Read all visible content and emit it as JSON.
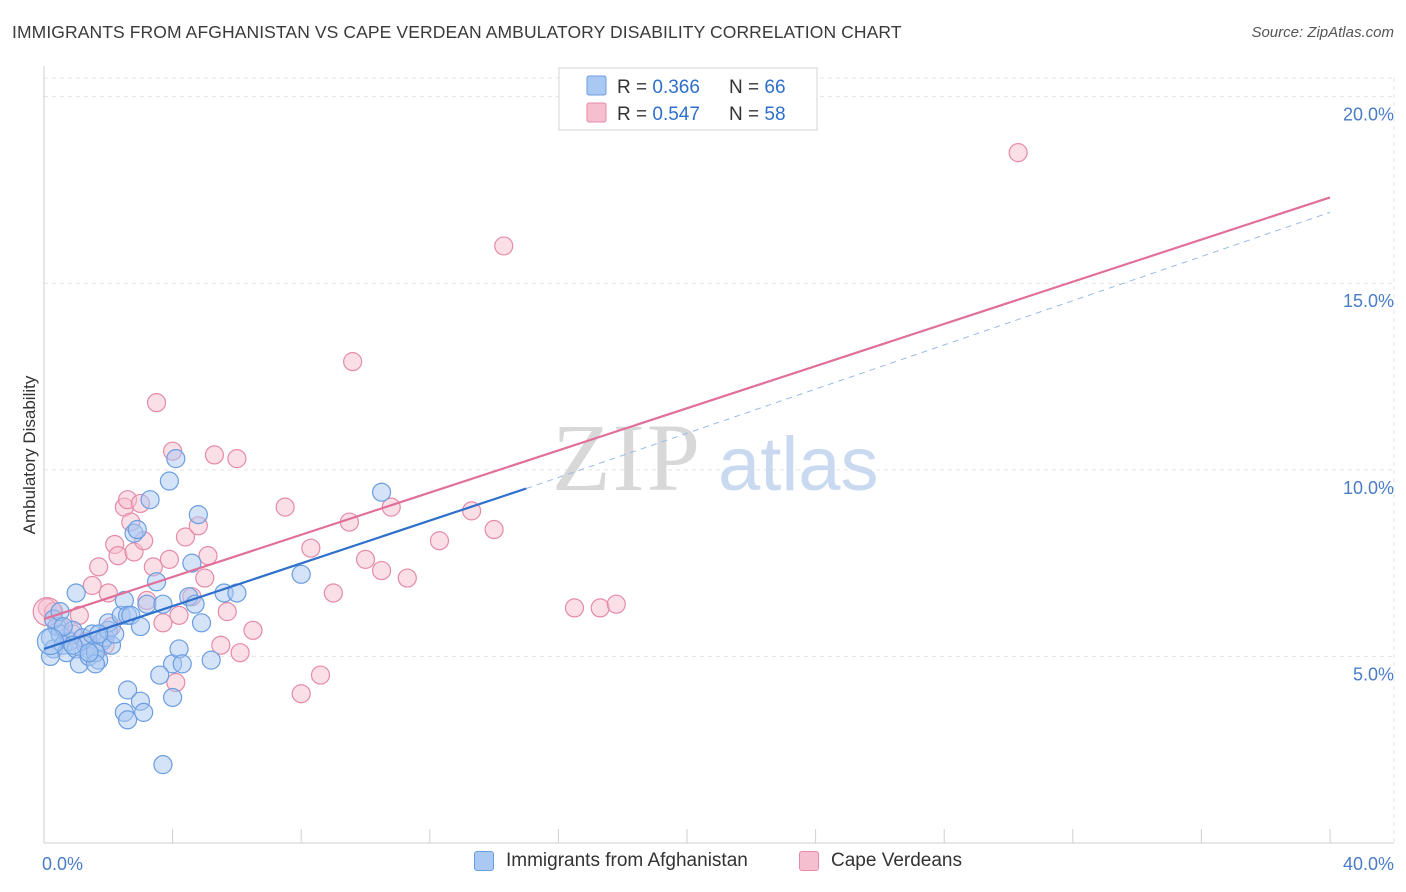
{
  "header": {
    "title": "IMMIGRANTS FROM AFGHANISTAN VS CAPE VERDEAN AMBULATORY DISABILITY CORRELATION CHART",
    "source": "Source: ZipAtlas.com"
  },
  "colors": {
    "blue_fill": "#a9c8f2",
    "blue_stroke": "#6a9ee0",
    "blue_line": "#2e6fcc",
    "pink_fill": "#f6bfd0",
    "pink_stroke": "#e58aa8",
    "pink_line": "#e0709a",
    "tick_label": "#4a7cc7",
    "grid": "#e3e3e3"
  },
  "watermark": {
    "zip": "ZIP",
    "atlas": "atlas"
  },
  "legend_top": [
    {
      "r_label": "R = ",
      "r_value": "0.366",
      "n_label": "N = ",
      "n_value": "66"
    },
    {
      "r_label": "R = ",
      "r_value": "0.547",
      "n_label": "N = ",
      "n_value": "58"
    }
  ],
  "chart_data": {
    "type": "scatter",
    "title": "IMMIGRANTS FROM AFGHANISTAN VS CAPE VERDEAN AMBULATORY DISABILITY CORRELATION CHART",
    "xlabel": "",
    "ylabel": "Ambulatory Disability",
    "xlim": [
      0,
      40
    ],
    "ylim": [
      0,
      20.5
    ],
    "x_tick_labels": [
      "0.0%",
      "40.0%"
    ],
    "y_ticks": [
      5,
      10,
      15,
      20
    ],
    "y_tick_labels": [
      "5.0%",
      "10.0%",
      "15.0%",
      "20.0%"
    ],
    "grid": true,
    "legend_position": "top-center",
    "series": [
      {
        "name": "Immigrants from Afghanistan",
        "color": "blue",
        "r": 0.366,
        "n": 66,
        "trend": {
          "x0": 0,
          "y0": 5.2,
          "x1": 15.0,
          "y1": 9.5,
          "dash_to_x": 40,
          "dash_to_y": 16.9
        },
        "points": [
          [
            0.2,
            5.5
          ],
          [
            0.3,
            5.2
          ],
          [
            0.4,
            5.8
          ],
          [
            0.5,
            5.6
          ],
          [
            0.6,
            5.3
          ],
          [
            0.7,
            5.1
          ],
          [
            0.8,
            5.4
          ],
          [
            0.9,
            5.7
          ],
          [
            1.0,
            5.2
          ],
          [
            1.1,
            4.8
          ],
          [
            1.2,
            5.5
          ],
          [
            1.3,
            5.3
          ],
          [
            1.4,
            5.0
          ],
          [
            1.5,
            5.6
          ],
          [
            1.6,
            5.2
          ],
          [
            1.7,
            4.9
          ],
          [
            1.8,
            5.4
          ],
          [
            1.9,
            5.5
          ],
          [
            2.0,
            5.7
          ],
          [
            2.1,
            5.3
          ],
          [
            0.3,
            6.0
          ],
          [
            0.5,
            6.2
          ],
          [
            0.2,
            5.0
          ],
          [
            1.0,
            6.7
          ],
          [
            1.6,
            5.1
          ],
          [
            2.0,
            5.9
          ],
          [
            2.2,
            5.6
          ],
          [
            2.4,
            6.1
          ],
          [
            2.5,
            6.5
          ],
          [
            2.6,
            6.1
          ],
          [
            2.7,
            6.1
          ],
          [
            2.8,
            8.3
          ],
          [
            2.9,
            8.4
          ],
          [
            3.0,
            5.8
          ],
          [
            3.2,
            6.4
          ],
          [
            3.3,
            9.2
          ],
          [
            3.5,
            7.0
          ],
          [
            3.7,
            6.4
          ],
          [
            3.9,
            9.7
          ],
          [
            4.0,
            4.8
          ],
          [
            4.1,
            10.3
          ],
          [
            4.2,
            5.2
          ],
          [
            4.3,
            4.8
          ],
          [
            4.5,
            6.6
          ],
          [
            4.6,
            7.5
          ],
          [
            4.7,
            6.4
          ],
          [
            4.8,
            8.8
          ],
          [
            4.9,
            5.9
          ],
          [
            5.2,
            4.9
          ],
          [
            5.6,
            6.7
          ],
          [
            6.0,
            6.7
          ],
          [
            8.0,
            7.2
          ],
          [
            10.5,
            9.4
          ],
          [
            2.6,
            4.1
          ],
          [
            2.5,
            3.5
          ],
          [
            2.6,
            3.3
          ],
          [
            3.0,
            3.8
          ],
          [
            3.1,
            3.5
          ],
          [
            3.7,
            2.1
          ],
          [
            4.0,
            3.9
          ],
          [
            3.6,
            4.5
          ],
          [
            1.6,
            4.8
          ],
          [
            0.9,
            5.3
          ],
          [
            1.4,
            5.1
          ],
          [
            0.6,
            5.8
          ],
          [
            1.7,
            5.6
          ]
        ]
      },
      {
        "name": "Cape Verdeans",
        "color": "pink",
        "r": 0.547,
        "n": 58,
        "trend": {
          "x0": 0,
          "y0": 6.0,
          "x1": 40,
          "y1": 17.3
        },
        "points": [
          [
            0.1,
            6.3
          ],
          [
            0.3,
            6.2
          ],
          [
            0.5,
            5.8
          ],
          [
            0.7,
            5.5
          ],
          [
            0.9,
            5.6
          ],
          [
            1.1,
            6.1
          ],
          [
            1.3,
            5.4
          ],
          [
            1.5,
            6.9
          ],
          [
            1.7,
            7.4
          ],
          [
            1.9,
            5.3
          ],
          [
            2.0,
            6.7
          ],
          [
            2.1,
            5.8
          ],
          [
            2.2,
            8.0
          ],
          [
            2.3,
            7.7
          ],
          [
            2.5,
            9.0
          ],
          [
            2.6,
            9.2
          ],
          [
            2.7,
            8.6
          ],
          [
            2.8,
            7.8
          ],
          [
            3.0,
            9.1
          ],
          [
            3.1,
            8.1
          ],
          [
            3.2,
            6.5
          ],
          [
            3.4,
            7.4
          ],
          [
            3.5,
            11.8
          ],
          [
            3.7,
            5.9
          ],
          [
            3.9,
            7.6
          ],
          [
            4.0,
            10.5
          ],
          [
            4.1,
            4.3
          ],
          [
            4.2,
            6.1
          ],
          [
            4.4,
            8.2
          ],
          [
            4.6,
            6.6
          ],
          [
            4.8,
            8.5
          ],
          [
            5.0,
            7.1
          ],
          [
            5.1,
            7.7
          ],
          [
            5.3,
            10.4
          ],
          [
            5.5,
            5.3
          ],
          [
            5.7,
            6.2
          ],
          [
            6.0,
            10.3
          ],
          [
            6.1,
            5.1
          ],
          [
            6.5,
            5.7
          ],
          [
            7.5,
            9.0
          ],
          [
            8.0,
            4.0
          ],
          [
            8.3,
            7.9
          ],
          [
            8.6,
            4.5
          ],
          [
            9.0,
            6.7
          ],
          [
            9.5,
            8.6
          ],
          [
            9.6,
            12.9
          ],
          [
            10.0,
            7.6
          ],
          [
            10.5,
            7.3
          ],
          [
            10.8,
            9.0
          ],
          [
            11.3,
            7.1
          ],
          [
            12.3,
            8.1
          ],
          [
            13.3,
            8.9
          ],
          [
            14.0,
            8.4
          ],
          [
            14.3,
            16.0
          ],
          [
            16.5,
            6.3
          ],
          [
            17.3,
            6.3
          ],
          [
            17.8,
            6.4
          ],
          [
            30.3,
            18.5
          ]
        ]
      }
    ]
  },
  "legend_bottom": [
    {
      "label": "Immigrants from Afghanistan"
    },
    {
      "label": "Cape Verdeans"
    }
  ]
}
